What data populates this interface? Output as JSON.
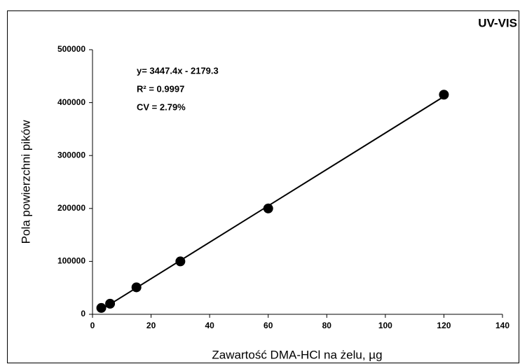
{
  "chart_data": {
    "type": "scatter",
    "title": "UV-VIS",
    "x_label": "Zawartość DMA-HCl na żelu, µg",
    "y_label": "Pola powierzchni pików",
    "annotations": [
      "y= 3447.4x - 2179.3",
      "R² = 0.9997",
      "CV = 2.79%"
    ],
    "x": [
      3,
      6,
      15,
      30,
      60,
      120
    ],
    "values": [
      12000,
      20000,
      51000,
      100000,
      200000,
      415000
    ],
    "color": "#000000",
    "trendline": {
      "x": [
        2.5,
        120
      ],
      "values": [
        7000,
        411500
      ]
    },
    "xlim": [
      0,
      140
    ],
    "xticks": [
      0,
      20,
      40,
      60,
      80,
      100,
      120,
      140
    ],
    "ylim": [
      0,
      500000
    ],
    "yticks": [
      0,
      100000,
      200000,
      300000,
      400000,
      500000
    ],
    "grid": false
  }
}
